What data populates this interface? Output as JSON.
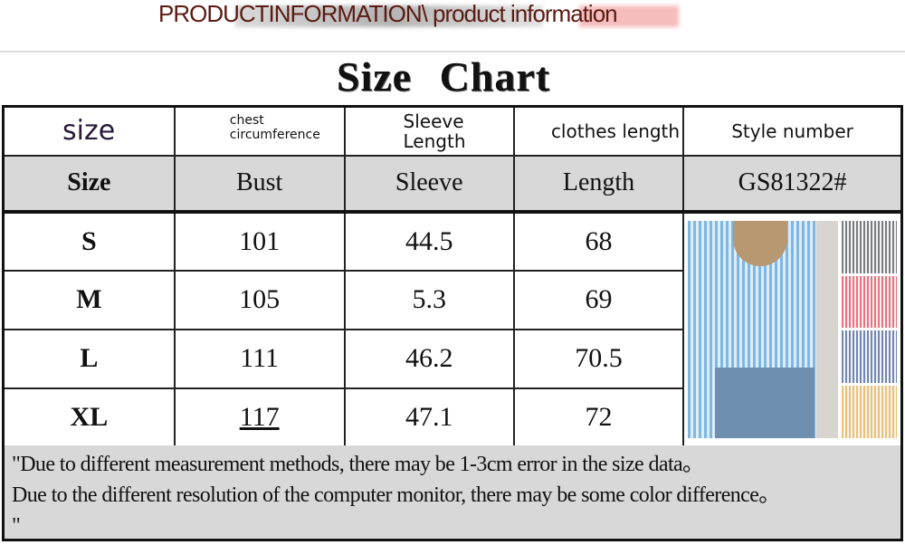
{
  "banner": {
    "title": "PRODUCTINFORMATION\\ product information"
  },
  "heading": "Size  Chart",
  "header_row": [
    "size",
    "chest circumference",
    "Sleeve Length",
    "clothes length",
    "Style number"
  ],
  "label_row": [
    "Size",
    "Bust",
    "Sleeve",
    "Length",
    "GS81322#"
  ],
  "rows": [
    {
      "size": "S",
      "bust": "101",
      "sleeve": "44.5",
      "length": "68"
    },
    {
      "size": "M",
      "bust": "105",
      "sleeve": "5.3",
      "length": "69"
    },
    {
      "size": "L",
      "bust": "111",
      "sleeve": "46.2",
      "length": "70.5"
    },
    {
      "size": "XL",
      "bust": "117",
      "sleeve": "47.1",
      "length": "72"
    }
  ],
  "product_image": {
    "thumbnail_colors": [
      "#7a7d82",
      "#ef6f7a",
      "#6f86b8",
      "#f0c070"
    ]
  },
  "notes": [
    "\"Due to different measurement methods, there may be 1-3cm error in the size data。",
    "Due to the different resolution of the computer monitor, there may be some color difference。",
    "\""
  ]
}
